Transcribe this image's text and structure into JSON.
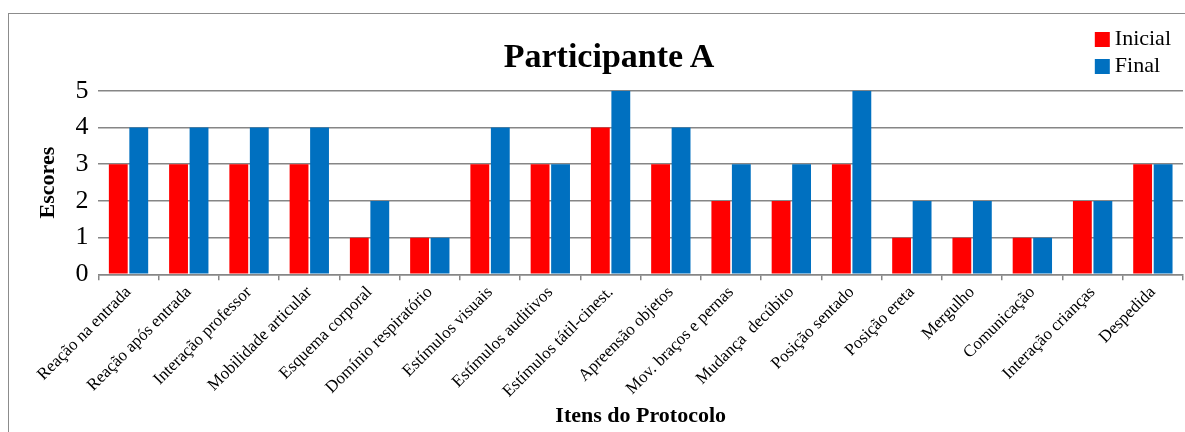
{
  "chart_data": {
    "type": "bar",
    "title": "Participante A",
    "xlabel": "Itens do Protocolo",
    "ylabel": "Escores",
    "categories": [
      "Reação na entrada",
      "Reação após entrada",
      "Interação professor",
      "Mobilidade articular",
      "Esquema corporal",
      "Domínio respiratório",
      "Estímulos visuais",
      "Estímulos auditivos",
      "Estímulos tátil-cinest.",
      "Apreensão objetos",
      "Mov. braços e pernas",
      "Mudança  decúbito",
      "Posição sentado",
      "Posição ereta",
      "Mergulho",
      "Comunicação",
      "Interação crianças",
      "Despedida"
    ],
    "series": [
      {
        "name": "Inicial",
        "color": "#ff0000",
        "values": [
          3,
          3,
          3,
          3,
          1,
          1,
          3,
          3,
          4,
          3,
          2,
          2,
          3,
          1,
          1,
          1,
          2,
          3
        ]
      },
      {
        "name": "Final",
        "color": "#0070c0",
        "values": [
          4,
          4,
          4,
          4,
          2,
          1,
          4,
          3,
          5,
          4,
          3,
          3,
          5,
          2,
          2,
          1,
          2,
          3
        ]
      }
    ],
    "ylim": [
      0,
      5
    ],
    "yticks": [
      0,
      1,
      2,
      3,
      4,
      5
    ],
    "grid": "y",
    "legend": "top right"
  }
}
